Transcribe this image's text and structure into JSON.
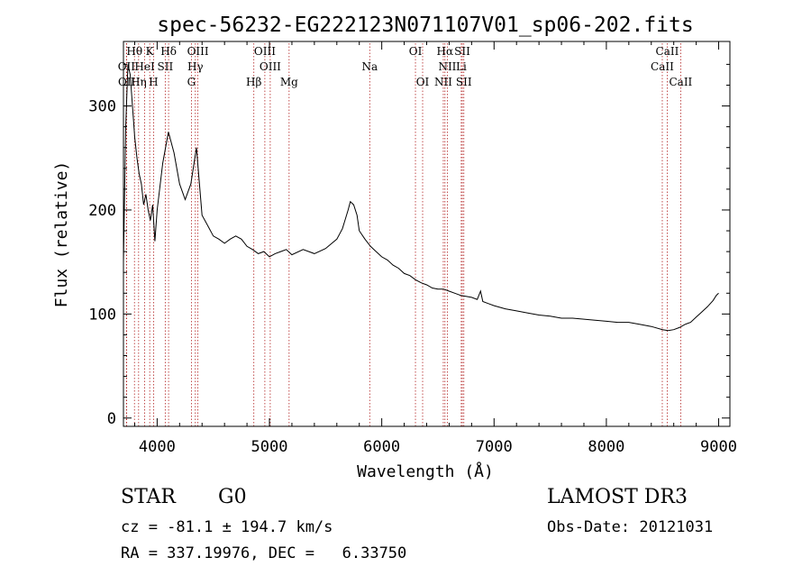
{
  "chart_data": {
    "type": "line",
    "title": "spec-56232-EG222123N071107V01_sp06-202.fits",
    "xlabel": "Wavelength (Å)",
    "ylabel": "Flux (relative)",
    "xlim": [
      3700,
      9100
    ],
    "ylim": [
      -8,
      362
    ],
    "x_ticks": [
      4000,
      5000,
      6000,
      7000,
      8000,
      9000
    ],
    "y_ticks": [
      0,
      100,
      200,
      300
    ],
    "x_tick_labels": [
      "4000",
      "5000",
      "6000",
      "7000",
      "8000",
      "9000"
    ],
    "y_tick_labels": [
      "0",
      "100",
      "200",
      "300"
    ],
    "series": [
      {
        "name": "flux",
        "x": [
          3700,
          3720,
          3740,
          3760,
          3780,
          3800,
          3820,
          3840,
          3860,
          3880,
          3900,
          3920,
          3940,
          3960,
          3980,
          4000,
          4050,
          4100,
          4150,
          4200,
          4250,
          4300,
          4350,
          4400,
          4450,
          4500,
          4550,
          4600,
          4650,
          4700,
          4750,
          4800,
          4850,
          4900,
          4950,
          5000,
          5050,
          5100,
          5150,
          5200,
          5300,
          5400,
          5500,
          5600,
          5650,
          5700,
          5720,
          5750,
          5780,
          5800,
          5850,
          5900,
          5950,
          6000,
          6050,
          6100,
          6150,
          6200,
          6250,
          6300,
          6350,
          6400,
          6450,
          6500,
          6550,
          6600,
          6650,
          6700,
          6750,
          6800,
          6850,
          6880,
          6900,
          6950,
          7000,
          7100,
          7200,
          7300,
          7400,
          7500,
          7600,
          7700,
          7800,
          7900,
          8000,
          8100,
          8200,
          8300,
          8400,
          8500,
          8550,
          8600,
          8650,
          8700,
          8750,
          8800,
          8850,
          8900,
          8950,
          8980,
          9000
        ],
        "y": [
          150,
          280,
          340,
          330,
          300,
          270,
          250,
          235,
          225,
          205,
          215,
          200,
          190,
          205,
          170,
          200,
          245,
          275,
          255,
          225,
          210,
          225,
          260,
          195,
          185,
          175,
          172,
          168,
          172,
          175,
          172,
          165,
          162,
          158,
          160,
          155,
          158,
          160,
          162,
          157,
          162,
          158,
          163,
          172,
          182,
          200,
          208,
          205,
          195,
          180,
          172,
          165,
          160,
          155,
          152,
          147,
          144,
          139,
          137,
          133,
          130,
          128,
          125,
          124,
          124,
          122,
          120,
          118,
          117,
          116,
          114,
          122,
          112,
          110,
          108,
          105,
          103,
          101,
          99,
          98,
          96,
          96,
          95,
          94,
          93,
          92,
          92,
          90,
          88,
          85,
          84,
          85,
          87,
          90,
          92,
          97,
          102,
          107,
          113,
          118,
          120
        ]
      }
    ],
    "line_labels": [
      {
        "label": "Hθ",
        "wavelength": 3798,
        "row": 1
      },
      {
        "label": "K",
        "wavelength": 3934,
        "row": 1
      },
      {
        "label": "Hδ",
        "wavelength": 4102,
        "row": 1
      },
      {
        "label": "OIII",
        "wavelength": 4363,
        "row": 1
      },
      {
        "label": "OIII",
        "wavelength": 4959,
        "row": 1
      },
      {
        "label": "OI",
        "wavelength": 6300,
        "row": 1
      },
      {
        "label": "Hα",
        "wavelength": 6563,
        "row": 1
      },
      {
        "label": "SII",
        "wavelength": 6717,
        "row": 1
      },
      {
        "label": "CaII",
        "wavelength": 8542,
        "row": 1
      },
      {
        "label": "OII",
        "wavelength": 3727,
        "row": 2
      },
      {
        "label": "HeI",
        "wavelength": 3889,
        "row": 2
      },
      {
        "label": "SII",
        "wavelength": 4072,
        "row": 2
      },
      {
        "label": "Hγ",
        "wavelength": 4340,
        "row": 2
      },
      {
        "label": "OIII",
        "wavelength": 5007,
        "row": 2
      },
      {
        "label": "Na",
        "wavelength": 5893,
        "row": 2
      },
      {
        "label": "NII",
        "wavelength": 6584,
        "row": 2
      },
      {
        "label": "Li",
        "wavelength": 6708,
        "row": 2
      },
      {
        "label": "CaII",
        "wavelength": 8498,
        "row": 2
      },
      {
        "label": "OII",
        "wavelength": 3729,
        "row": 3
      },
      {
        "label": "Hη",
        "wavelength": 3835,
        "row": 3
      },
      {
        "label": "H",
        "wavelength": 3968,
        "row": 3
      },
      {
        "label": "G",
        "wavelength": 4305,
        "row": 3
      },
      {
        "label": "Hβ",
        "wavelength": 4861,
        "row": 3
      },
      {
        "label": "Mg",
        "wavelength": 5175,
        "row": 3
      },
      {
        "label": "OI",
        "wavelength": 6364,
        "row": 3
      },
      {
        "label": "NII",
        "wavelength": 6548,
        "row": 3
      },
      {
        "label": "SII",
        "wavelength": 6731,
        "row": 3
      },
      {
        "label": "CaII",
        "wavelength": 8662,
        "row": 3
      }
    ],
    "grid": false,
    "legend": "none"
  },
  "info": {
    "class_label": "STAR",
    "subclass": "G0",
    "survey": "LAMOST DR3",
    "cz": "cz = -81.1 ± 194.7 km/s",
    "obs_date": "Obs-Date: 20121031",
    "radec": "RA = 337.19976, DEC =   6.33750"
  },
  "colors": {
    "spectrum": "#000000",
    "line_markers": "#b22222",
    "axes": "#000000"
  }
}
